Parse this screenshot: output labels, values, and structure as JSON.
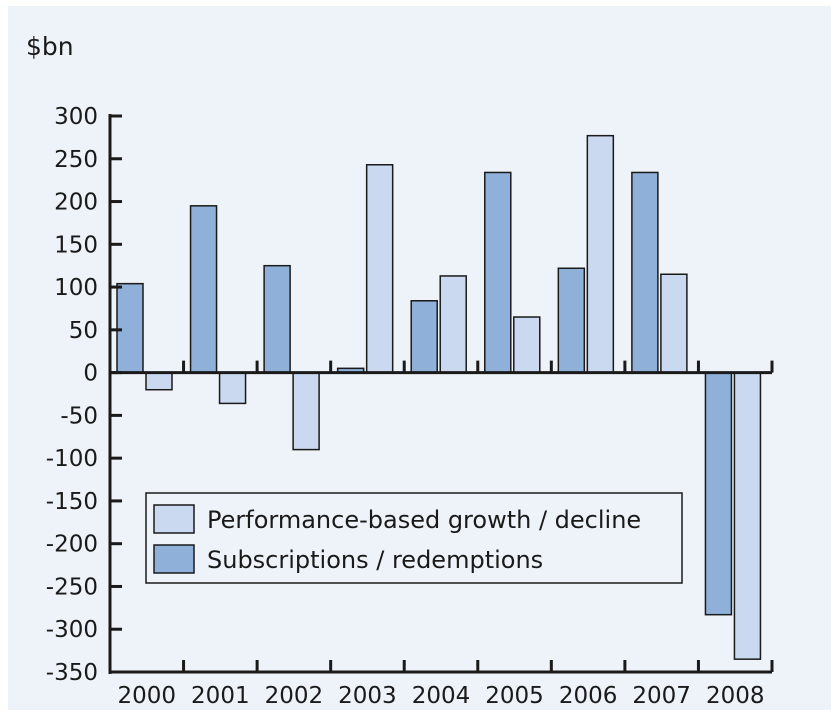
{
  "chart_data": {
    "type": "bar",
    "ylabel": "$bn",
    "ylim": [
      -350,
      300
    ],
    "yticks": [
      300,
      250,
      200,
      150,
      100,
      50,
      0,
      -50,
      -100,
      -150,
      -200,
      -250,
      -300,
      -350
    ],
    "categories": [
      "2000",
      "2001",
      "2002",
      "2003",
      "2004",
      "2005",
      "2006",
      "2007",
      "2008"
    ],
    "series": [
      {
        "name": "Subscriptions / redemptions",
        "color": "#8eb0d9",
        "values": [
          104,
          195,
          125,
          5,
          84,
          234,
          122,
          234,
          -283
        ]
      },
      {
        "name": "Performance-based growth / decline",
        "color": "#cad9ef",
        "values": [
          -20,
          -36,
          -90,
          243,
          113,
          65,
          277,
          115,
          -335
        ]
      }
    ],
    "legend": {
      "placement": "lower-left",
      "order": [
        "Performance-based growth / decline",
        "Subscriptions / redemptions"
      ]
    },
    "background": "#eef3f9",
    "bar_stroke": "#1a1a1a",
    "grid": false
  }
}
